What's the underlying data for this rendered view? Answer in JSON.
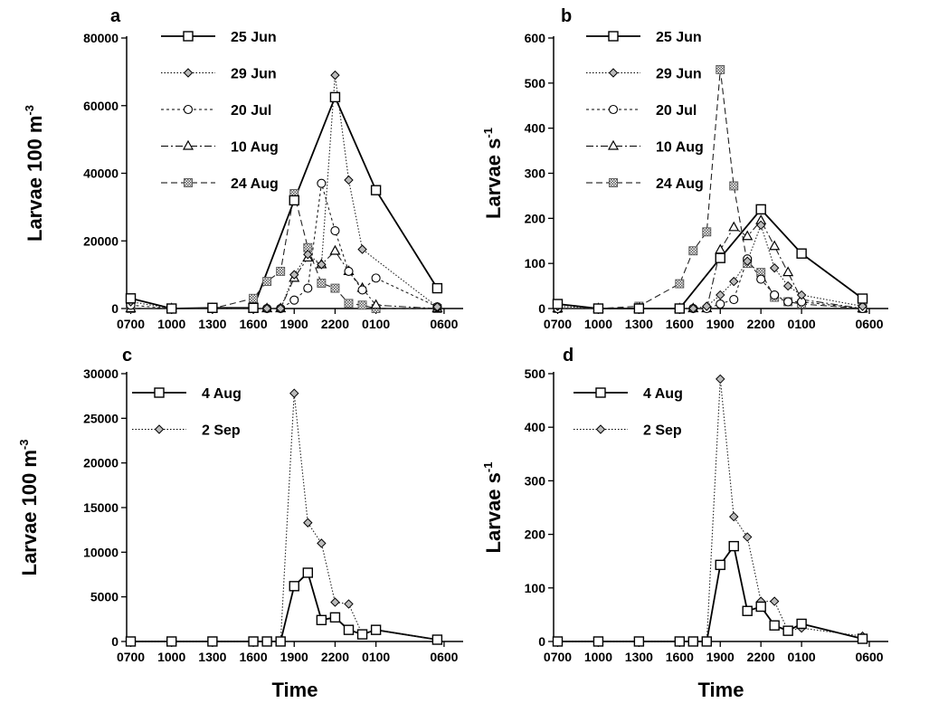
{
  "chart_data": [
    {
      "panel": "a",
      "type": "line",
      "ylabel": "Larvae 100 m",
      "ylabel_sup": "-3",
      "xlabel": "",
      "x_ticks": [
        "0700",
        "1000",
        "1300",
        "1600",
        "1900",
        "2200",
        "0100",
        "0600"
      ],
      "y_ticks": [
        "0",
        "20000",
        "40000",
        "60000",
        "80000"
      ],
      "ylim": [
        0,
        80000
      ],
      "series": [
        {
          "name": "25 Jun",
          "style": "solid",
          "marker": "square",
          "points": [
            [
              7,
              3000
            ],
            [
              10,
              0
            ],
            [
              13,
              200
            ],
            [
              16,
              200
            ],
            [
              19,
              32000
            ],
            [
              22,
              62500
            ],
            [
              25,
              35000
            ],
            [
              29.5,
              6000
            ]
          ]
        },
        {
          "name": "29 Jun",
          "style": "dotted",
          "marker": "diamond",
          "points": [
            [
              7,
              2000
            ],
            [
              10,
              0
            ],
            [
              13,
              0
            ],
            [
              16,
              0
            ],
            [
              17,
              0
            ],
            [
              18,
              0
            ],
            [
              19,
              10000
            ],
            [
              20,
              16000
            ],
            [
              21,
              13000
            ],
            [
              22,
              69000
            ],
            [
              23,
              38000
            ],
            [
              24,
              17500
            ],
            [
              29.5,
              500
            ]
          ]
        },
        {
          "name": "20 Jul",
          "style": "shortdash",
          "marker": "circle",
          "points": [
            [
              7,
              1000
            ],
            [
              10,
              0
            ],
            [
              13,
              0
            ],
            [
              16,
              0
            ],
            [
              17,
              0
            ],
            [
              18,
              0
            ],
            [
              19,
              2500
            ],
            [
              20,
              6000
            ],
            [
              21,
              37000
            ],
            [
              22,
              23000
            ],
            [
              23,
              11000
            ],
            [
              24,
              5500
            ],
            [
              25,
              9000
            ],
            [
              29.5,
              500
            ]
          ]
        },
        {
          "name": "10 Aug",
          "style": "dashdot",
          "marker": "triangle",
          "points": [
            [
              7,
              0
            ],
            [
              10,
              0
            ],
            [
              13,
              0
            ],
            [
              16,
              0
            ],
            [
              17,
              0
            ],
            [
              18,
              0
            ],
            [
              19,
              9000
            ],
            [
              20,
              15000
            ],
            [
              21,
              13000
            ],
            [
              22,
              17000
            ],
            [
              23,
              11000
            ],
            [
              24,
              6000
            ],
            [
              25,
              1000
            ],
            [
              29.5,
              0
            ]
          ]
        },
        {
          "name": "24 Aug",
          "style": "longdash",
          "marker": "hatched-square",
          "points": [
            [
              7,
              0
            ],
            [
              10,
              0
            ],
            [
              13,
              0
            ],
            [
              16,
              3000
            ],
            [
              17,
              8000
            ],
            [
              18,
              11000
            ],
            [
              19,
              34000
            ],
            [
              20,
              18000
            ],
            [
              21,
              7500
            ],
            [
              22,
              6000
            ],
            [
              23,
              1500
            ],
            [
              24,
              1000
            ],
            [
              25,
              0
            ],
            [
              29.5,
              0
            ]
          ]
        }
      ]
    },
    {
      "panel": "b",
      "type": "line",
      "ylabel": "Larvae s",
      "ylabel_sup": "-1",
      "xlabel": "",
      "x_ticks": [
        "0700",
        "1000",
        "1300",
        "1600",
        "1900",
        "2200",
        "0100",
        "0600"
      ],
      "y_ticks": [
        "0",
        "100",
        "200",
        "300",
        "400",
        "500",
        "600"
      ],
      "ylim": [
        0,
        600
      ],
      "series": [
        {
          "name": "25 Jun",
          "style": "solid",
          "marker": "square",
          "points": [
            [
              7,
              10
            ],
            [
              10,
              0
            ],
            [
              13,
              0
            ],
            [
              16,
              0
            ],
            [
              19,
              112
            ],
            [
              22,
              220
            ],
            [
              25,
              122
            ],
            [
              29.5,
              22
            ]
          ]
        },
        {
          "name": "29 Jun",
          "style": "dotted",
          "marker": "diamond",
          "points": [
            [
              7,
              5
            ],
            [
              10,
              0
            ],
            [
              13,
              0
            ],
            [
              16,
              0
            ],
            [
              17,
              0
            ],
            [
              18,
              5
            ],
            [
              19,
              30
            ],
            [
              20,
              60
            ],
            [
              21,
              105
            ],
            [
              22,
              185
            ],
            [
              23,
              90
            ],
            [
              24,
              50
            ],
            [
              25,
              30
            ],
            [
              29.5,
              5
            ]
          ]
        },
        {
          "name": "20 Jul",
          "style": "shortdash",
          "marker": "circle",
          "points": [
            [
              7,
              0
            ],
            [
              10,
              0
            ],
            [
              13,
              0
            ],
            [
              16,
              0
            ],
            [
              17,
              0
            ],
            [
              18,
              0
            ],
            [
              19,
              10
            ],
            [
              20,
              20
            ],
            [
              21,
              110
            ],
            [
              22,
              65
            ],
            [
              23,
              30
            ],
            [
              24,
              15
            ],
            [
              25,
              15
            ],
            [
              29.5,
              0
            ]
          ]
        },
        {
          "name": "10 Aug",
          "style": "dashdot",
          "marker": "triangle",
          "points": [
            [
              7,
              0
            ],
            [
              10,
              0
            ],
            [
              13,
              0
            ],
            [
              16,
              0
            ],
            [
              17,
              0
            ],
            [
              18,
              0
            ],
            [
              19,
              130
            ],
            [
              20,
              180
            ],
            [
              21,
              160
            ],
            [
              22,
              195
            ],
            [
              23,
              138
            ],
            [
              24,
              80
            ],
            [
              25,
              20
            ],
            [
              29.5,
              0
            ]
          ]
        },
        {
          "name": "24 Aug",
          "style": "longdash",
          "marker": "hatched-square",
          "points": [
            [
              7,
              0
            ],
            [
              10,
              0
            ],
            [
              13,
              5
            ],
            [
              16,
              55
            ],
            [
              17,
              128
            ],
            [
              18,
              170
            ],
            [
              19,
              530
            ],
            [
              20,
              272
            ],
            [
              21,
              100
            ],
            [
              22,
              80
            ],
            [
              23,
              25
            ],
            [
              24,
              15
            ],
            [
              25,
              10
            ],
            [
              29.5,
              0
            ]
          ]
        }
      ]
    },
    {
      "panel": "c",
      "type": "line",
      "ylabel": "Larvae 100 m",
      "ylabel_sup": "-3",
      "xlabel": "Time",
      "x_ticks": [
        "0700",
        "1000",
        "1300",
        "1600",
        "1900",
        "2200",
        "0100",
        "0600"
      ],
      "y_ticks": [
        "0",
        "5000",
        "10000",
        "15000",
        "20000",
        "25000",
        "30000"
      ],
      "ylim": [
        0,
        30000
      ],
      "series": [
        {
          "name": "4 Aug",
          "style": "solid",
          "marker": "square",
          "points": [
            [
              7,
              0
            ],
            [
              10,
              0
            ],
            [
              13,
              0
            ],
            [
              16,
              0
            ],
            [
              17,
              0
            ],
            [
              18,
              0
            ],
            [
              19,
              6200
            ],
            [
              20,
              7700
            ],
            [
              21,
              2400
            ],
            [
              22,
              2700
            ],
            [
              23,
              1300
            ],
            [
              24,
              800
            ],
            [
              25,
              1300
            ],
            [
              29.5,
              200
            ]
          ]
        },
        {
          "name": "2 Sep",
          "style": "dotted",
          "marker": "diamond",
          "points": [
            [
              7,
              0
            ],
            [
              10,
              0
            ],
            [
              13,
              0
            ],
            [
              16,
              0
            ],
            [
              17,
              0
            ],
            [
              18,
              0
            ],
            [
              19,
              27800
            ],
            [
              20,
              13300
            ],
            [
              21,
              11000
            ],
            [
              22,
              4400
            ],
            [
              23,
              4200
            ],
            [
              24,
              800
            ],
            [
              25,
              1300
            ],
            [
              29.5,
              200
            ]
          ]
        }
      ]
    },
    {
      "panel": "d",
      "type": "line",
      "ylabel": "Larvae s",
      "ylabel_sup": "-1",
      "xlabel": "Time",
      "x_ticks": [
        "0700",
        "1000",
        "1300",
        "1600",
        "1900",
        "2200",
        "0100",
        "0600"
      ],
      "y_ticks": [
        "0",
        "100",
        "200",
        "300",
        "400",
        "500"
      ],
      "ylim": [
        0,
        500
      ],
      "series": [
        {
          "name": "4 Aug",
          "style": "solid",
          "marker": "square",
          "points": [
            [
              7,
              0
            ],
            [
              10,
              0
            ],
            [
              13,
              0
            ],
            [
              16,
              0
            ],
            [
              17,
              0
            ],
            [
              18,
              0
            ],
            [
              19,
              143
            ],
            [
              20,
              178
            ],
            [
              21,
              57
            ],
            [
              22,
              65
            ],
            [
              23,
              30
            ],
            [
              24,
              20
            ],
            [
              25,
              33
            ],
            [
              29.5,
              5
            ]
          ]
        },
        {
          "name": "2 Sep",
          "style": "dotted",
          "marker": "diamond",
          "points": [
            [
              7,
              0
            ],
            [
              10,
              0
            ],
            [
              13,
              0
            ],
            [
              16,
              0
            ],
            [
              17,
              0
            ],
            [
              18,
              0
            ],
            [
              19,
              490
            ],
            [
              20,
              233
            ],
            [
              21,
              195
            ],
            [
              22,
              75
            ],
            [
              23,
              75
            ],
            [
              24,
              20
            ],
            [
              25,
              25
            ],
            [
              29.5,
              10
            ]
          ]
        }
      ]
    }
  ]
}
